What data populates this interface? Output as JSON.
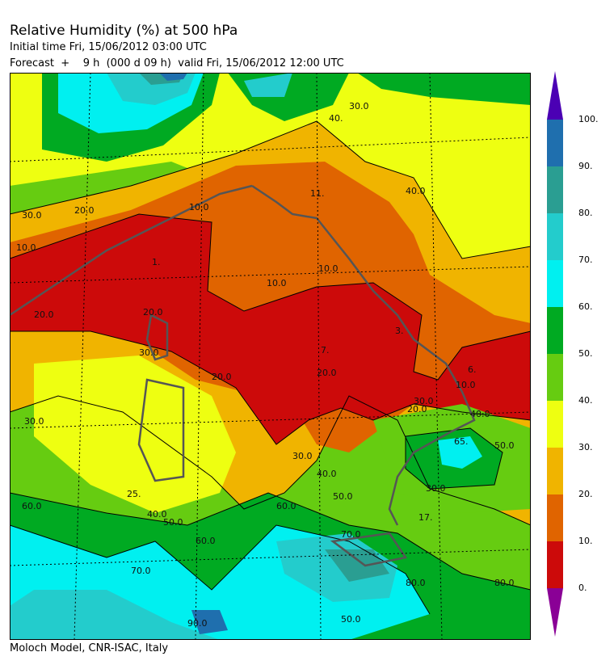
{
  "header": {
    "title": "Relative Humidity (%) at 500 hPa",
    "initial_time": "Initial time  Fri, 15/06/2012  03:00 UTC",
    "forecast": "Forecast  +    9 h  (000 d 09 h)  valid Fri, 15/06/2012 12:00 UTC"
  },
  "footer": {
    "credit": "Moloch Model, CNR-ISAC, Italy"
  },
  "colorbar": {
    "ticks": [
      "100.",
      "90.",
      "80.",
      "70.",
      "60.",
      "50.",
      "40.",
      "30.",
      "20.",
      "10.",
      "0."
    ],
    "colors": [
      "#1f6fae",
      "#2a9e92",
      "#23cccc",
      "#00f0f0",
      "#00aa22",
      "#66cc11",
      "#eeff11",
      "#f0b400",
      "#e06400",
      "#cc0a0a"
    ],
    "over_color": "#4b00b4",
    "under_color": "#8a0096"
  },
  "map": {
    "contour_labels": [
      "1.",
      "3.",
      "6.",
      "7.",
      "10.0",
      "10.0",
      "10.0",
      "10.0",
      "10.0",
      "11.",
      "17.",
      "20.0",
      "20.0",
      "20.0",
      "20.0",
      "20.0",
      "20.0",
      "25.",
      "30.0",
      "30.0",
      "30.0",
      "30.0",
      "30.0",
      "30.0",
      "30.0",
      "40.",
      "40.0",
      "40.0",
      "40.0",
      "40.0",
      "50.0",
      "50.0",
      "50.0",
      "50.0",
      "60.0",
      "60.0",
      "60.0",
      "65.",
      "70.0",
      "70.0",
      "80.0",
      "80.0",
      "90.0"
    ]
  }
}
